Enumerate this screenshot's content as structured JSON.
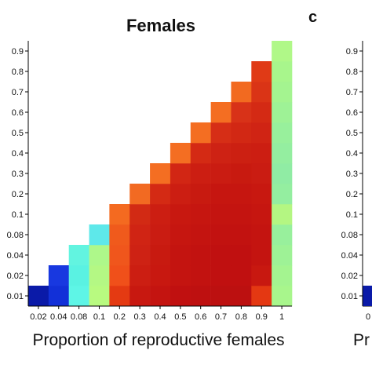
{
  "chart_data": [
    {
      "type": "heatmap",
      "title": "Females",
      "xlabel": "Proportion of reproductive females",
      "ylabel": "",
      "x_categories": [
        "0.02",
        "0.04",
        "0.08",
        "0.1",
        "0.2",
        "0.3",
        "0.4",
        "0.5",
        "0.6",
        "0.7",
        "0.8",
        "0.9",
        "1"
      ],
      "y_categories": [
        "0.01",
        "0.02",
        "0.04",
        "0.08",
        "0.1",
        "0.2",
        "0.3",
        "0.4",
        "0.5",
        "0.6",
        "0.7",
        "0.8",
        "0.9"
      ],
      "colors": {
        "0.02": [
          "#0a1aa8",
          null,
          null,
          null,
          null,
          null,
          null,
          null,
          null,
          null,
          null,
          null,
          null
        ],
        "0.04": [
          "#1230d8",
          "#1838e0",
          null,
          null,
          null,
          null,
          null,
          null,
          null,
          null,
          null,
          null,
          null
        ],
        "0.08": [
          "#5ef5e6",
          "#5af2e2",
          "#62f4e0",
          null,
          null,
          null,
          null,
          null,
          null,
          null,
          null,
          null,
          null
        ],
        "0.1": [
          "#b8fa80",
          "#b4f884",
          "#aef88a",
          "#5ee8ea",
          null,
          null,
          null,
          null,
          null,
          null,
          null,
          null,
          null
        ],
        "0.2": [
          "#e43a12",
          "#f0501a",
          "#f0561c",
          "#f05a1c",
          "#f46a20",
          null,
          null,
          null,
          null,
          null,
          null,
          null,
          null
        ],
        "0.3": [
          "#c81810",
          "#cc1e12",
          "#ce2214",
          "#d02414",
          "#d22a14",
          "#f26a22",
          null,
          null,
          null,
          null,
          null,
          null,
          null
        ],
        "0.4": [
          "#c41410",
          "#c81810",
          "#c81a10",
          "#ca1c12",
          "#cc1e12",
          "#d42a14",
          "#f46e22",
          null,
          null,
          null,
          null,
          null,
          null
        ],
        "0.5": [
          "#c01010",
          "#c41410",
          "#c41410",
          "#c61610",
          "#c81810",
          "#cc1e12",
          "#d22614",
          "#f46e22",
          null,
          null,
          null,
          null,
          null
        ],
        "0.6": [
          "#be1010",
          "#c21210",
          "#c21210",
          "#c41410",
          "#c61610",
          "#c81a10",
          "#cc1e12",
          "#d42a14",
          "#f46e22",
          null,
          null,
          null,
          null
        ],
        "0.7": [
          "#bc1010",
          "#c01010",
          "#c01010",
          "#c21210",
          "#c41410",
          "#c61610",
          "#ca1c12",
          "#ce2214",
          "#d62e16",
          "#f46e22",
          null,
          null,
          null
        ],
        "0.8": [
          "#bc1010",
          "#c01010",
          "#c01010",
          "#c21210",
          "#c41410",
          "#c61610",
          "#c81a10",
          "#cc2012",
          "#d22814",
          "#d83218",
          "#f26a20",
          null,
          null
        ],
        "0.9": [
          "#e43812",
          "#c81810",
          "#c41410",
          "#c41410",
          "#c61610",
          "#c81810",
          "#ca1c12",
          "#cc1e12",
          "#d02414",
          "#d42a14",
          "#da3416",
          "#e03a16",
          null
        ],
        "1": [
          "#a8f68c",
          "#a4f490",
          "#9ef296",
          "#98f09c",
          "#b4f682",
          "#94eea0",
          "#90eca4",
          "#94eea0",
          "#98f09c",
          "#9ef296",
          "#a4f490",
          "#a8f68c",
          "#b0f888"
        ]
      }
    }
  ],
  "panel_label": "c",
  "right_panel": {
    "y_ticks": [
      "0.01",
      "0.02",
      "0.04",
      "0.08",
      "0.1",
      "0.2",
      "0.3",
      "0.4",
      "0.5",
      "0.6",
      "0.7",
      "0.8",
      "0.9"
    ],
    "x_tick_partial": "0",
    "xlabel_partial": "Pr"
  }
}
